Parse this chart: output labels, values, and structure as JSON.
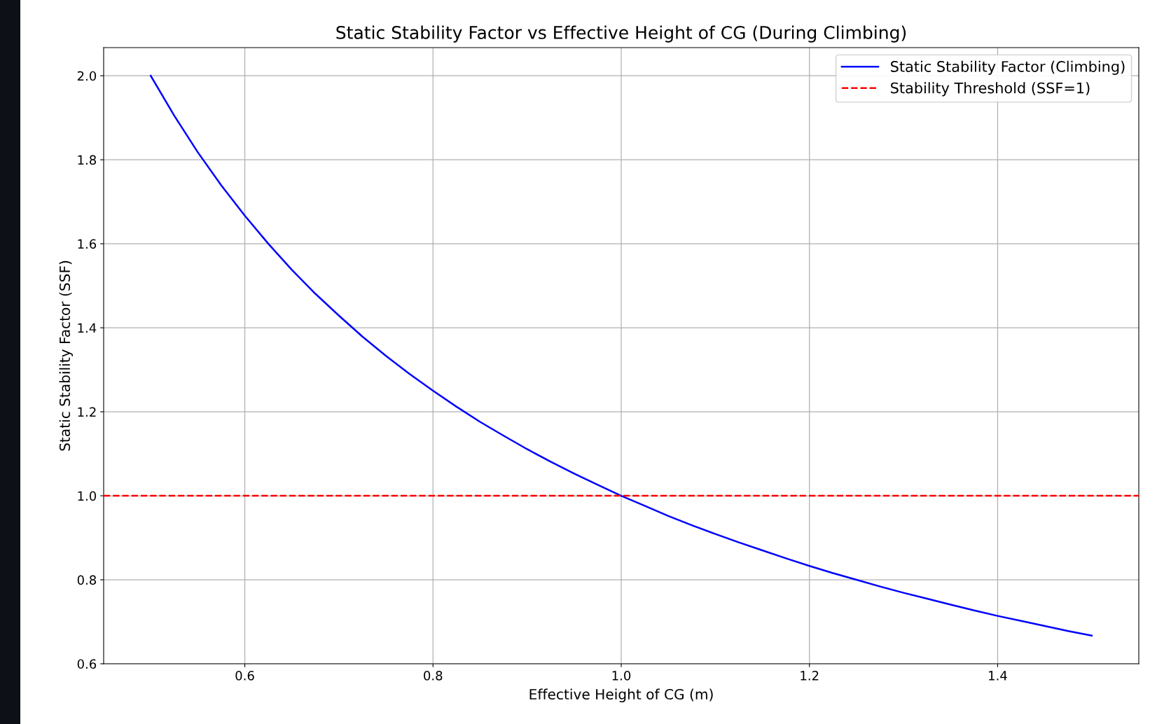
{
  "chart_data": {
    "type": "line",
    "title": "Static Stability Factor vs Effective Height of CG (During Climbing)",
    "xlabel": "Effective Height of CG (m)",
    "ylabel": "Static Stability Factor (SSF)",
    "x": [
      0.5,
      0.525,
      0.55,
      0.575,
      0.6,
      0.625,
      0.65,
      0.675,
      0.7,
      0.725,
      0.75,
      0.775,
      0.8,
      0.825,
      0.85,
      0.875,
      0.9,
      0.925,
      0.95,
      0.975,
      1.0,
      1.025,
      1.05,
      1.075,
      1.1,
      1.125,
      1.15,
      1.175,
      1.2,
      1.225,
      1.25,
      1.275,
      1.3,
      1.325,
      1.35,
      1.375,
      1.4,
      1.425,
      1.45,
      1.475,
      1.5
    ],
    "series": [
      {
        "name": "Static Stability Factor (Climbing)",
        "color": "#0000ff",
        "line_style": "solid",
        "values": [
          2.0,
          1.905,
          1.818,
          1.739,
          1.667,
          1.6,
          1.538,
          1.481,
          1.429,
          1.379,
          1.333,
          1.29,
          1.25,
          1.212,
          1.176,
          1.143,
          1.111,
          1.081,
          1.053,
          1.026,
          1.0,
          0.976,
          0.952,
          0.93,
          0.909,
          0.889,
          0.87,
          0.851,
          0.833,
          0.816,
          0.8,
          0.784,
          0.769,
          0.755,
          0.741,
          0.727,
          0.714,
          0.702,
          0.69,
          0.678,
          0.667
        ]
      }
    ],
    "ref_lines": [
      {
        "axis": "y",
        "value": 1.0,
        "label": "Stability Threshold (SSF=1)",
        "color": "#ff0000",
        "line_style": "dashed"
      }
    ],
    "xlim": [
      0.45,
      1.55
    ],
    "ylim": [
      0.6,
      2.067
    ],
    "xticks": [
      0.6,
      0.8,
      {
        "value": 1,
        "label": "1.0"
      },
      1.2,
      1.4
    ],
    "yticks": [
      0.6,
      0.8,
      {
        "value": 1,
        "label": "1.0"
      },
      1.2,
      1.4,
      1.6,
      1.8,
      {
        "value": 2,
        "label": "2.0"
      }
    ],
    "grid": true,
    "legend": "top right",
    "marker": "none"
  }
}
